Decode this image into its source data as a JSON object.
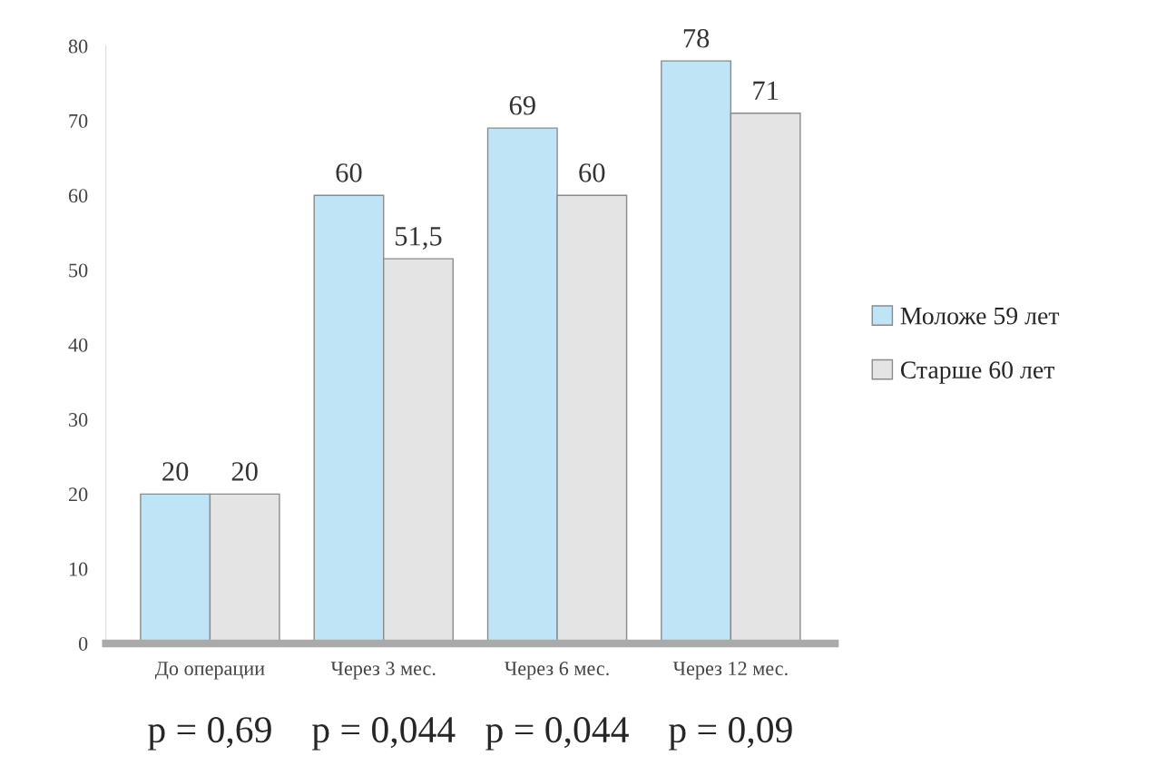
{
  "chart_data": {
    "type": "bar",
    "categories": [
      "До операции",
      "Через 3 мес.",
      "Через 6 мес.",
      "Через 12 мес."
    ],
    "series": [
      {
        "name": "Моложе 59 лет",
        "color": "#bfe4f6",
        "values": [
          20,
          60,
          69,
          78
        ],
        "value_labels": [
          "20",
          "60",
          "69",
          "78"
        ]
      },
      {
        "name": "Старше 60 лет",
        "color": "#e4e4e4",
        "values": [
          20,
          51.5,
          60,
          71
        ],
        "value_labels": [
          "20",
          "51,5",
          "60",
          "71"
        ]
      }
    ],
    "ylim": [
      0,
      80
    ],
    "yticks": [
      0,
      10,
      20,
      30,
      40,
      50,
      60,
      70,
      80
    ],
    "legend": "right",
    "grid": false,
    "annotations": [
      "p = 0,69",
      "p = 0,044",
      "p = 0,044",
      "p = 0,09"
    ]
  }
}
